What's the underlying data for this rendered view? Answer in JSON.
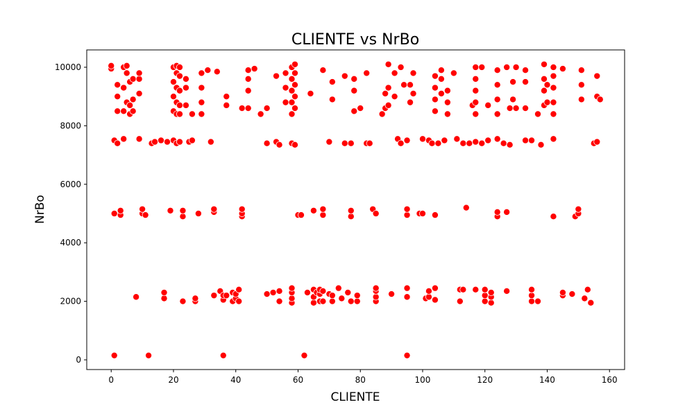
{
  "chart_data": {
    "type": "scatter",
    "title": "CLIENTE vs NrBo",
    "x_label": "CLIENTE",
    "y_label": "NrBo",
    "color": "red",
    "edge_color": "white",
    "xlim": [
      -7.85,
      164.85
    ],
    "ylim": [
      -332,
      10592
    ],
    "xticks": [
      0,
      20,
      40,
      60,
      80,
      100,
      120,
      140,
      160
    ],
    "yticks": [
      0,
      2000,
      4000,
      6000,
      8000,
      10000
    ],
    "x": [
      1,
      12,
      36,
      62,
      95,
      8,
      17,
      17,
      23,
      27,
      27,
      33,
      35,
      36,
      36,
      37,
      39,
      39,
      40,
      40,
      41,
      41,
      50,
      52,
      54,
      54,
      58,
      58,
      58,
      58,
      63,
      65,
      65,
      65,
      66,
      67,
      67,
      67,
      68,
      68,
      70,
      71,
      71,
      73,
      74,
      76,
      77,
      79,
      79,
      85,
      85,
      85,
      85,
      90,
      95,
      95,
      101,
      102,
      102,
      104,
      104,
      112,
      112,
      113,
      117,
      120,
      120,
      120,
      122,
      122,
      122,
      127,
      135,
      135,
      135,
      137,
      145,
      145,
      148,
      152,
      153,
      154,
      1,
      3,
      3,
      10,
      10,
      11,
      19,
      23,
      23,
      28,
      33,
      33,
      42,
      42,
      42,
      60,
      61,
      65,
      68,
      68,
      77,
      77,
      84,
      85,
      95,
      95,
      99,
      100,
      104,
      114,
      124,
      124,
      127,
      142,
      149,
      150,
      150,
      1,
      2,
      4,
      9,
      13,
      14,
      16,
      18,
      20,
      21,
      22,
      25,
      26,
      32,
      50,
      53,
      54,
      58,
      59,
      70,
      75,
      77,
      82,
      83,
      92,
      93,
      95,
      100,
      102,
      103,
      105,
      107,
      111,
      113,
      115,
      117,
      119,
      121,
      124,
      126,
      128,
      133,
      135,
      138,
      142,
      155,
      156,
      0,
      0,
      2,
      2,
      2,
      4,
      4,
      4,
      5,
      5,
      5,
      6,
      6,
      6,
      7,
      7,
      7,
      9,
      9,
      9,
      20,
      20,
      20,
      20,
      21,
      21,
      21,
      21,
      21,
      22,
      22,
      22,
      22,
      22,
      24,
      24,
      24,
      26,
      29,
      29,
      29,
      29,
      31,
      34,
      37,
      37,
      42,
      44,
      44,
      44,
      44,
      46,
      48,
      50,
      53,
      56,
      56,
      56,
      58,
      58,
      58,
      58,
      58,
      59,
      59,
      59,
      59,
      59,
      64,
      68,
      71,
      71,
      75,
      78,
      78,
      78,
      80,
      82,
      87,
      88,
      88,
      89,
      89,
      89,
      91,
      91,
      93,
      94,
      96,
      96,
      97,
      97,
      104,
      104,
      104,
      104,
      106,
      106,
      106,
      108,
      108,
      108,
      110,
      116,
      117,
      117,
      117,
      117,
      117,
      119,
      121,
      124,
      124,
      124,
      124,
      127,
      128,
      129,
      129,
      130,
      130,
      133,
      133,
      133,
      137,
      139,
      139,
      139,
      139,
      140,
      140,
      142,
      142,
      142,
      142,
      142,
      145,
      151,
      151,
      151,
      156,
      156,
      157
    ],
    "y": [
      150,
      150,
      150,
      150,
      150,
      2150,
      2100,
      2300,
      2000,
      2000,
      2100,
      2200,
      2350,
      2050,
      2200,
      2200,
      2000,
      2300,
      2100,
      2250,
      2000,
      2400,
      2250,
      2300,
      2000,
      2350,
      1950,
      2100,
      2300,
      2450,
      2300,
      1950,
      2150,
      2400,
      2300,
      2000,
      2250,
      2400,
      2000,
      2350,
      2250,
      2000,
      2200,
      2450,
      2100,
      2300,
      2000,
      2000,
      2200,
      2000,
      2150,
      2350,
      2450,
      2250,
      2150,
      2450,
      2100,
      2150,
      2350,
      2050,
      2450,
      2000,
      2400,
      2400,
      2400,
      2000,
      2200,
      2400,
      1950,
      2150,
      2300,
      2350,
      2000,
      2200,
      2400,
      2000,
      2200,
      2300,
      2250,
      2100,
      2400,
      1950,
      5000,
      4950,
      5100,
      5000,
      5150,
      4950,
      5100,
      4900,
      5100,
      5000,
      5050,
      5150,
      4900,
      5000,
      5150,
      4950,
      4950,
      5100,
      4950,
      5150,
      4900,
      5100,
      5150,
      5000,
      4950,
      5150,
      5000,
      5000,
      4950,
      5200,
      4900,
      5050,
      5050,
      4900,
      4900,
      5000,
      5150,
      7500,
      7400,
      7550,
      7550,
      7400,
      7450,
      7500,
      7450,
      7500,
      7400,
      7450,
      7450,
      7500,
      7450,
      7400,
      7450,
      7350,
      7400,
      7350,
      7450,
      7400,
      7400,
      7400,
      7400,
      7550,
      7400,
      7500,
      7550,
      7500,
      7400,
      7400,
      7500,
      7550,
      7400,
      7400,
      7450,
      7400,
      7500,
      7550,
      7400,
      7350,
      7500,
      7500,
      7350,
      7550,
      7400,
      7450,
      9950,
      10050,
      8500,
      9000,
      9400,
      8500,
      9300,
      10000,
      8800,
      9800,
      10050,
      8400,
      8700,
      9500,
      8500,
      8900,
      9600,
      9100,
      9600,
      9800,
      8500,
      9000,
      9500,
      10000,
      8400,
      8800,
      9300,
      9800,
      10050,
      8400,
      8700,
      9200,
      9700,
      10000,
      8700,
      9300,
      9600,
      8400,
      8400,
      8800,
      9300,
      9800,
      9900,
      9850,
      8700,
      9000,
      8600,
      8600,
      9200,
      9600,
      9900,
      9950,
      8400,
      8600,
      9700,
      8800,
      9300,
      9800,
      8400,
      8800,
      9200,
      9600,
      10000,
      8600,
      9000,
      9400,
      9800,
      10100,
      9100,
      9900,
      8900,
      9500,
      9700,
      8500,
      9200,
      9600,
      8600,
      9800,
      8400,
      8600,
      9100,
      8700,
      9300,
      10100,
      9000,
      9800,
      10000,
      9400,
      8800,
      9400,
      9100,
      9800,
      8500,
      8900,
      9300,
      9700,
      9100,
      9600,
      9900,
      8400,
      8800,
      9200,
      9800,
      8700,
      8400,
      8800,
      9200,
      9600,
      10000,
      10000,
      8700,
      8400,
      8900,
      9400,
      9900,
      10000,
      8600,
      8900,
      9500,
      8600,
      10000,
      8600,
      9500,
      9900,
      8400,
      8700,
      9200,
      9600,
      10100,
      8800,
      9400,
      8400,
      8800,
      9300,
      9700,
      10000,
      9950,
      8900,
      9400,
      9900,
      9000,
      9700,
      8900
    ]
  }
}
